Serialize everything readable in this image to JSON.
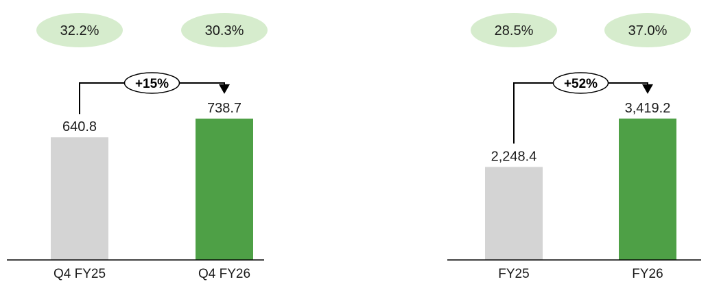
{
  "chart_data": [
    {
      "type": "bar",
      "categories": [
        "Q4 FY25",
        "Q4 FY26"
      ],
      "values": [
        640.8,
        738.7
      ],
      "value_labels": [
        "640.8",
        "738.7"
      ],
      "bar_colors": [
        "#d4d4d4",
        "#4ea046"
      ],
      "percent_badges": [
        "32.2%",
        "30.3%"
      ],
      "growth_label": "+15%",
      "ylim": [
        0,
        1000
      ],
      "title": "",
      "xlabel": "",
      "ylabel": ""
    },
    {
      "type": "bar",
      "categories": [
        "FY25",
        "FY26"
      ],
      "values": [
        2248.4,
        3419.2
      ],
      "value_labels": [
        "2,248.4",
        "3,419.2"
      ],
      "bar_colors": [
        "#d4d4d4",
        "#4ea046"
      ],
      "percent_badges": [
        "28.5%",
        "37.0%"
      ],
      "growth_label": "+52%",
      "ylim": [
        0,
        4627
      ],
      "title": "",
      "xlabel": "",
      "ylabel": ""
    }
  ],
  "colors": {
    "badge_fill": "#d6eccd",
    "baseline": "#000000",
    "text": "#1a1a1a"
  }
}
